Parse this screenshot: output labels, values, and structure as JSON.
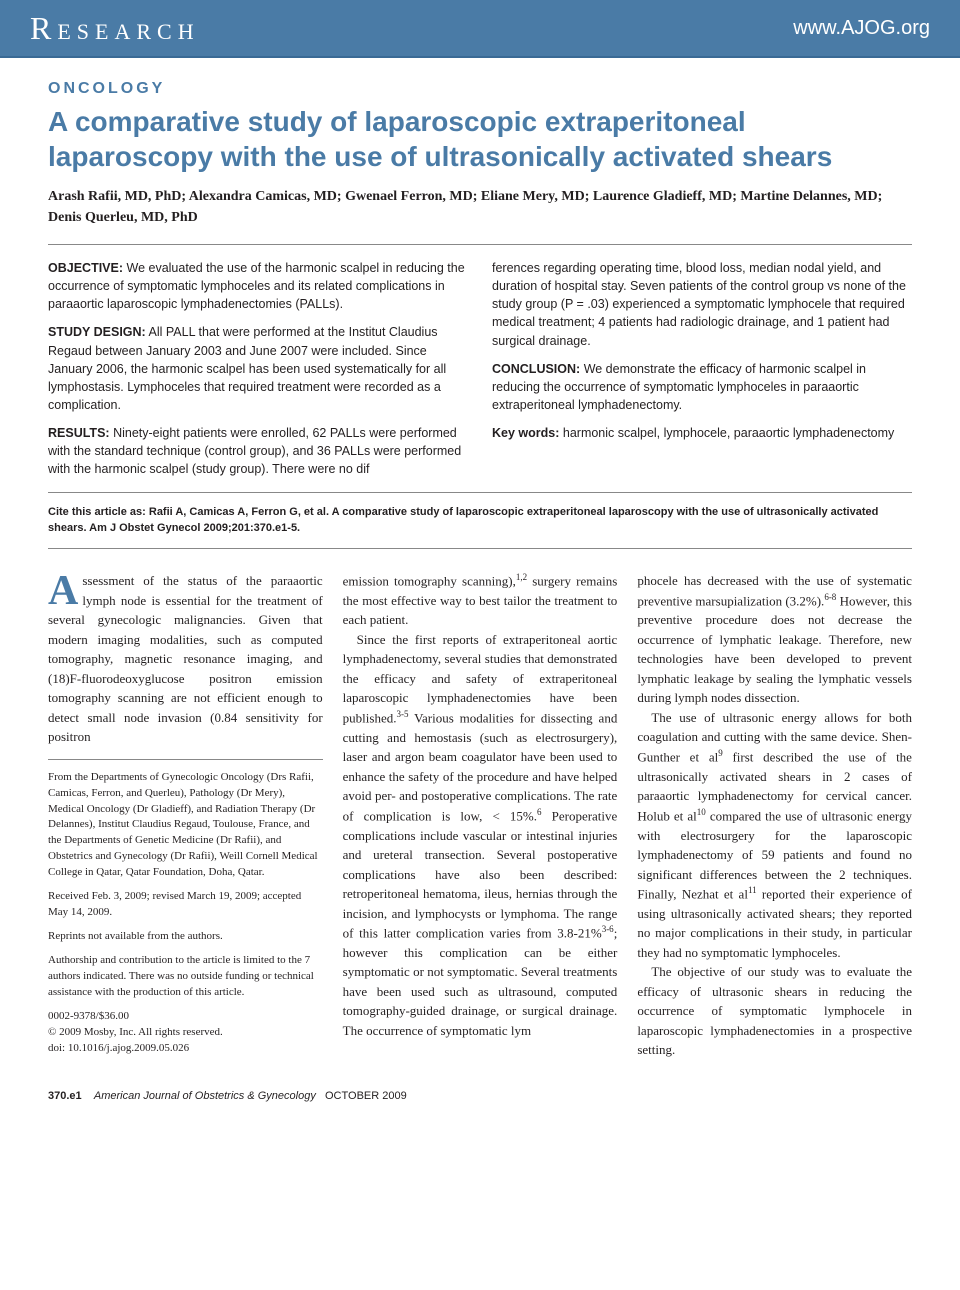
{
  "header": {
    "section": "Research",
    "url": "www.AJOG.org"
  },
  "article": {
    "category": "ONCOLOGY",
    "title": "A comparative study of laparoscopic extraperitoneal laparoscopy with the use of ultrasonically activated shears",
    "authors": "Arash Rafii, MD, PhD; Alexandra Camicas, MD; Gwenael Ferron, MD; Eliane Mery, MD; Laurence Gladieff, MD; Martine Delannes, MD; Denis Querleu, MD, PhD"
  },
  "abstract": {
    "objective_label": "OBJECTIVE:",
    "objective": "We evaluated the use of the harmonic scalpel in reducing the occurrence of symptomatic lymphoceles and its related complications in paraaortic laparoscopic lymphadenectomies (PALLs).",
    "design_label": "STUDY DESIGN:",
    "design": "All PALL that were performed at the Institut Claudius Regaud between January 2003 and June 2007 were included. Since January 2006, the harmonic scalpel has been used systematically for all lymphostasis. Lymphoceles that required treatment were recorded as a complication.",
    "results_label": "RESULTS:",
    "results_a": "Ninety-eight patients were enrolled, 62 PALLs were performed with the standard technique (control group), and 36 PALLs were performed with the harmonic scalpel (study group). There were no dif",
    "results_b": "ferences regarding operating time, blood loss, median nodal yield, and duration of hospital stay. Seven patients of the control group vs none of the study group (P = .03) experienced a symptomatic lymphocele that required medical treatment; 4 patients had radiologic drainage, and 1 patient had surgical drainage.",
    "conclusion_label": "CONCLUSION:",
    "conclusion": "We demonstrate the efficacy of harmonic scalpel in reducing the occurrence of symptomatic lymphoceles in paraaortic extraperitoneal lymphadenectomy.",
    "keywords_label": "Key words:",
    "keywords": "harmonic scalpel, lymphocele, paraaortic lymphadenectomy"
  },
  "citation": "Cite this article as: Rafii A, Camicas A, Ferron G, et al. A comparative study of laparoscopic extraperitoneal laparoscopy with the use of ultrasonically activated shears. Am J Obstet Gynecol 2009;201:370.e1-5.",
  "body": {
    "p1": "ssessment of the status of the paraaortic lymph node is essential for the treatment of several gynecologic malignancies. Given that modern imaging modalities, such as computed tomography, magnetic resonance imaging, and (18)F-fluorodeoxyglucose positron emission tomography scanning are not efficient enough to detect small node invasion (0.84 sensitivity for positron",
    "p1b": "emission tomography scanning),",
    "p1c": " surgery remains the most effective way to best tailor the treatment to each patient.",
    "p2a": "Since the first reports of extraperitoneal aortic lymphadenectomy, several studies that demonstrated the efficacy and safety of extraperitoneal laparoscopic lymphadenectomies have been published.",
    "p2b": " Various modalities for dissecting and cutting and hemostasis (such as electrosurgery), laser and argon beam coagulator have been used to enhance the safety of the procedure and have helped avoid per- and postoperative complications. The rate of complication is low, < 15%.",
    "p2c": " Peroperative complications include vascular or intestinal injuries and ureteral transection. Several postoperative complications have also been described: retroperitoneal hematoma, ileus, hernias through the incision, and lymphocysts or lymphoma. The range of this latter complication varies from 3.8-21%",
    "p2d": "; however this complication can be either symptomatic or not symptomatic. Several treatments have been used such as ultrasound, computed tomography-guided drainage, or surgical drainage. The occurrence of symptomatic lym",
    "p3a": "phocele has decreased with the use of systematic preventive marsupialization (3.2%).",
    "p3b": " However, this preventive procedure does not decrease the occurrence of lymphatic leakage. Therefore, new technologies have been developed to prevent lymphatic leakage by sealing the lymphatic vessels during lymph nodes dissection.",
    "p4a": "The use of ultrasonic energy allows for both coagulation and cutting with the same device. Shen-Gunther et al",
    "p4b": " first described the use of the ultrasonically activated shears in 2 cases of paraaortic lymphadenectomy for cervical cancer. Holub et al",
    "p4c": " compared the use of ultrasonic energy with electrosurgery for the laparoscopic lymphadenectomy of 59 patients and found no significant differences between the 2 techniques. Finally, Nezhat et al",
    "p4d": " reported their experience of using ultrasonically activated shears; they reported no major complications in their study, in particular they had no symptomatic lymphoceles.",
    "p5": "The objective of our study was to evaluate the efficacy of ultrasonic shears in reducing the occurrence of symptomatic lymphocele in laparoscopic lymphadenectomies in a prospective setting."
  },
  "refs": {
    "r12": "1,2",
    "r35": "3-5",
    "r6": "6",
    "r36": "3-6",
    "r68": "6-8",
    "r9": "9",
    "r10": "10",
    "r11": "11"
  },
  "affiliations": {
    "from": "From the Departments of Gynecologic Oncology (Drs Rafii, Camicas, Ferron, and Querleu), Pathology (Dr Mery), Medical Oncology (Dr Gladieff), and Radiation Therapy (Dr Delannes), Institut Claudius Regaud, Toulouse, France, and the Departments of Genetic Medicine (Dr Rafii), and Obstetrics and Gynecology (Dr Rafii), Weill Cornell Medical College in Qatar, Qatar Foundation, Doha, Qatar.",
    "received": "Received Feb. 3, 2009; revised March 19, 2009; accepted May 14, 2009.",
    "reprints": "Reprints not available from the authors.",
    "authorship": "Authorship and contribution to the article is limited to the 7 authors indicated. There was no outside funding or technical assistance with the production of this article.",
    "issn": "0002-9378/$36.00",
    "copyright": "© 2009 Mosby, Inc. All rights reserved.",
    "doi": "doi: 10.1016/j.ajog.2009.05.026"
  },
  "footer": {
    "page": "370.e1",
    "journal": "American Journal of Obstetrics & Gynecology",
    "date": "OCTOBER 2009"
  },
  "colors": {
    "header_bg": "#4a7ba6",
    "accent": "#4a7ba6",
    "text": "#231f20",
    "rule": "#888888"
  }
}
